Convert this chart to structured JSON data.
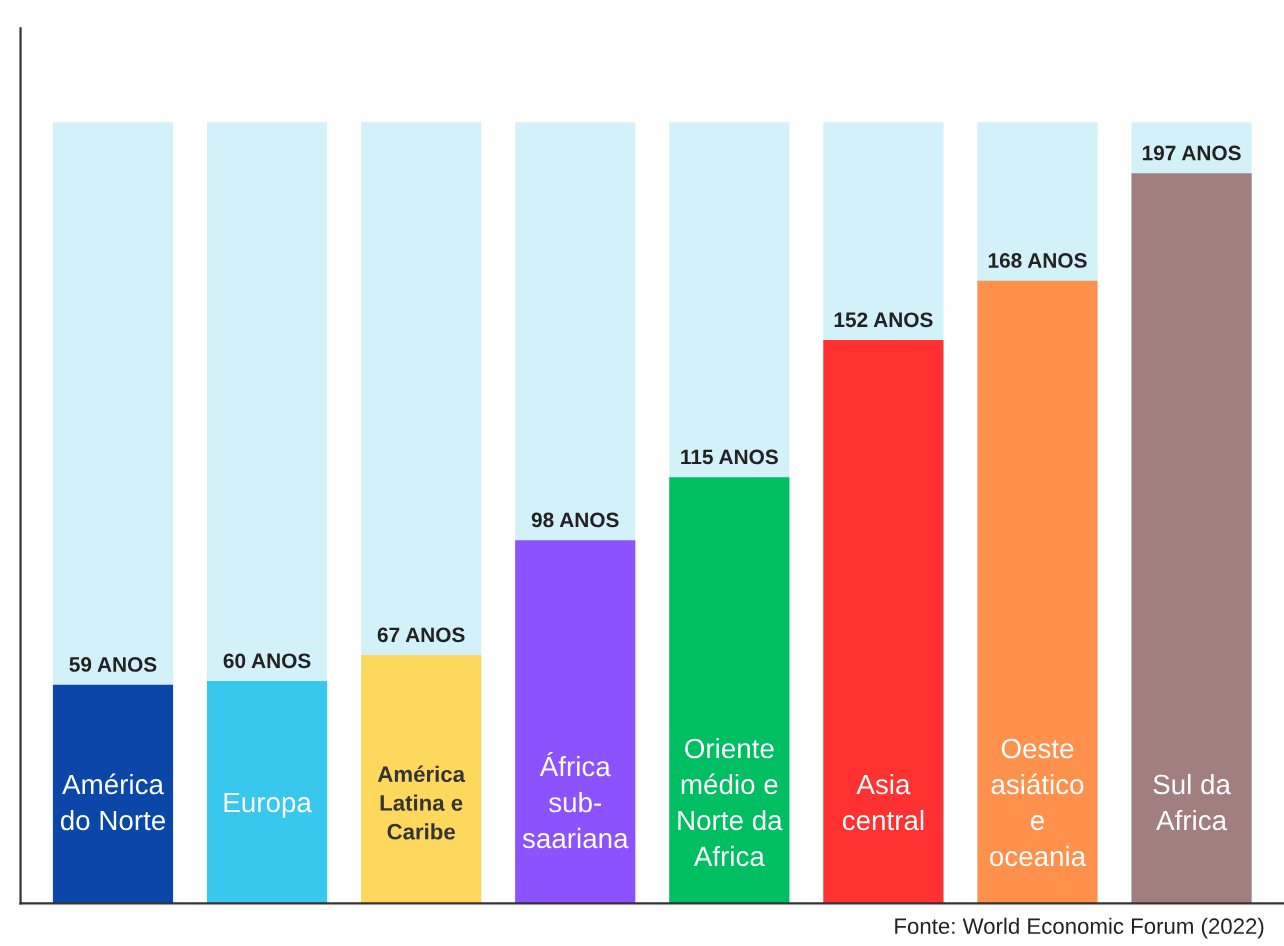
{
  "chart_data": {
    "type": "bar",
    "categories": [
      "América\ndo Norte",
      "Europa",
      "América\nLatina e\nCaribe",
      "África\nsub-\nsaariana",
      "Oriente\nmédio e\nNorte da\nAfrica",
      "Asia\ncentral",
      "Oeste\nasiático\ne\noceania",
      "Sul da\nAfrica"
    ],
    "values": [
      59,
      60,
      67,
      98,
      115,
      152,
      168,
      197
    ],
    "colors": [
      "#0a47a9",
      "#38c8ee",
      "#fdd85d",
      "#8c52ff",
      "#00bf63",
      "#ff3131",
      "#ff914d",
      "#a27f7f"
    ],
    "value_labels": [
      "59 ANOS",
      "60 ANOS",
      "67 ANOS",
      "98 ANOS",
      "115 ANOS",
      "152 ANOS",
      "168 ANOS",
      "197 ANOS"
    ],
    "annotations": [
      "Fonte: World Economic Forum (2022)"
    ]
  }
}
